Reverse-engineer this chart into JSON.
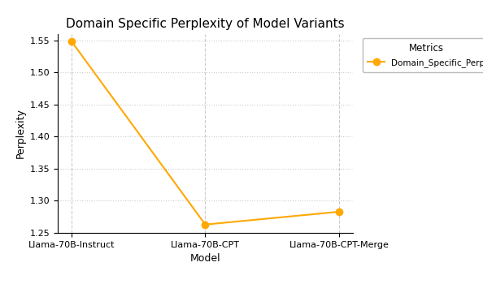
{
  "title": "Domain Specific Perplexity of Model Variants",
  "xlabel": "Model",
  "ylabel": "Perplexity",
  "categories": [
    "Llama-70B-Instruct",
    "Llama-70B-CPT",
    "Llama-70B-CPT-Merge"
  ],
  "series": [
    {
      "name": "Domain_Specific_Perp",
      "values": [
        1.549,
        1.263,
        1.283
      ],
      "color": "#FFA800",
      "marker": "o",
      "linewidth": 1.5,
      "markersize": 6
    }
  ],
  "ylim": [
    1.25,
    1.56
  ],
  "yticks": [
    1.25,
    1.3,
    1.35,
    1.4,
    1.45,
    1.5,
    1.55
  ],
  "grid_style": ":",
  "grid_color": "#cccccc",
  "background_color": "#ffffff",
  "legend_title": "Metrics",
  "title_fontsize": 11,
  "axis_label_fontsize": 9,
  "tick_fontsize": 8,
  "legend_fontsize": 7.5,
  "legend_title_fontsize": 8.5
}
